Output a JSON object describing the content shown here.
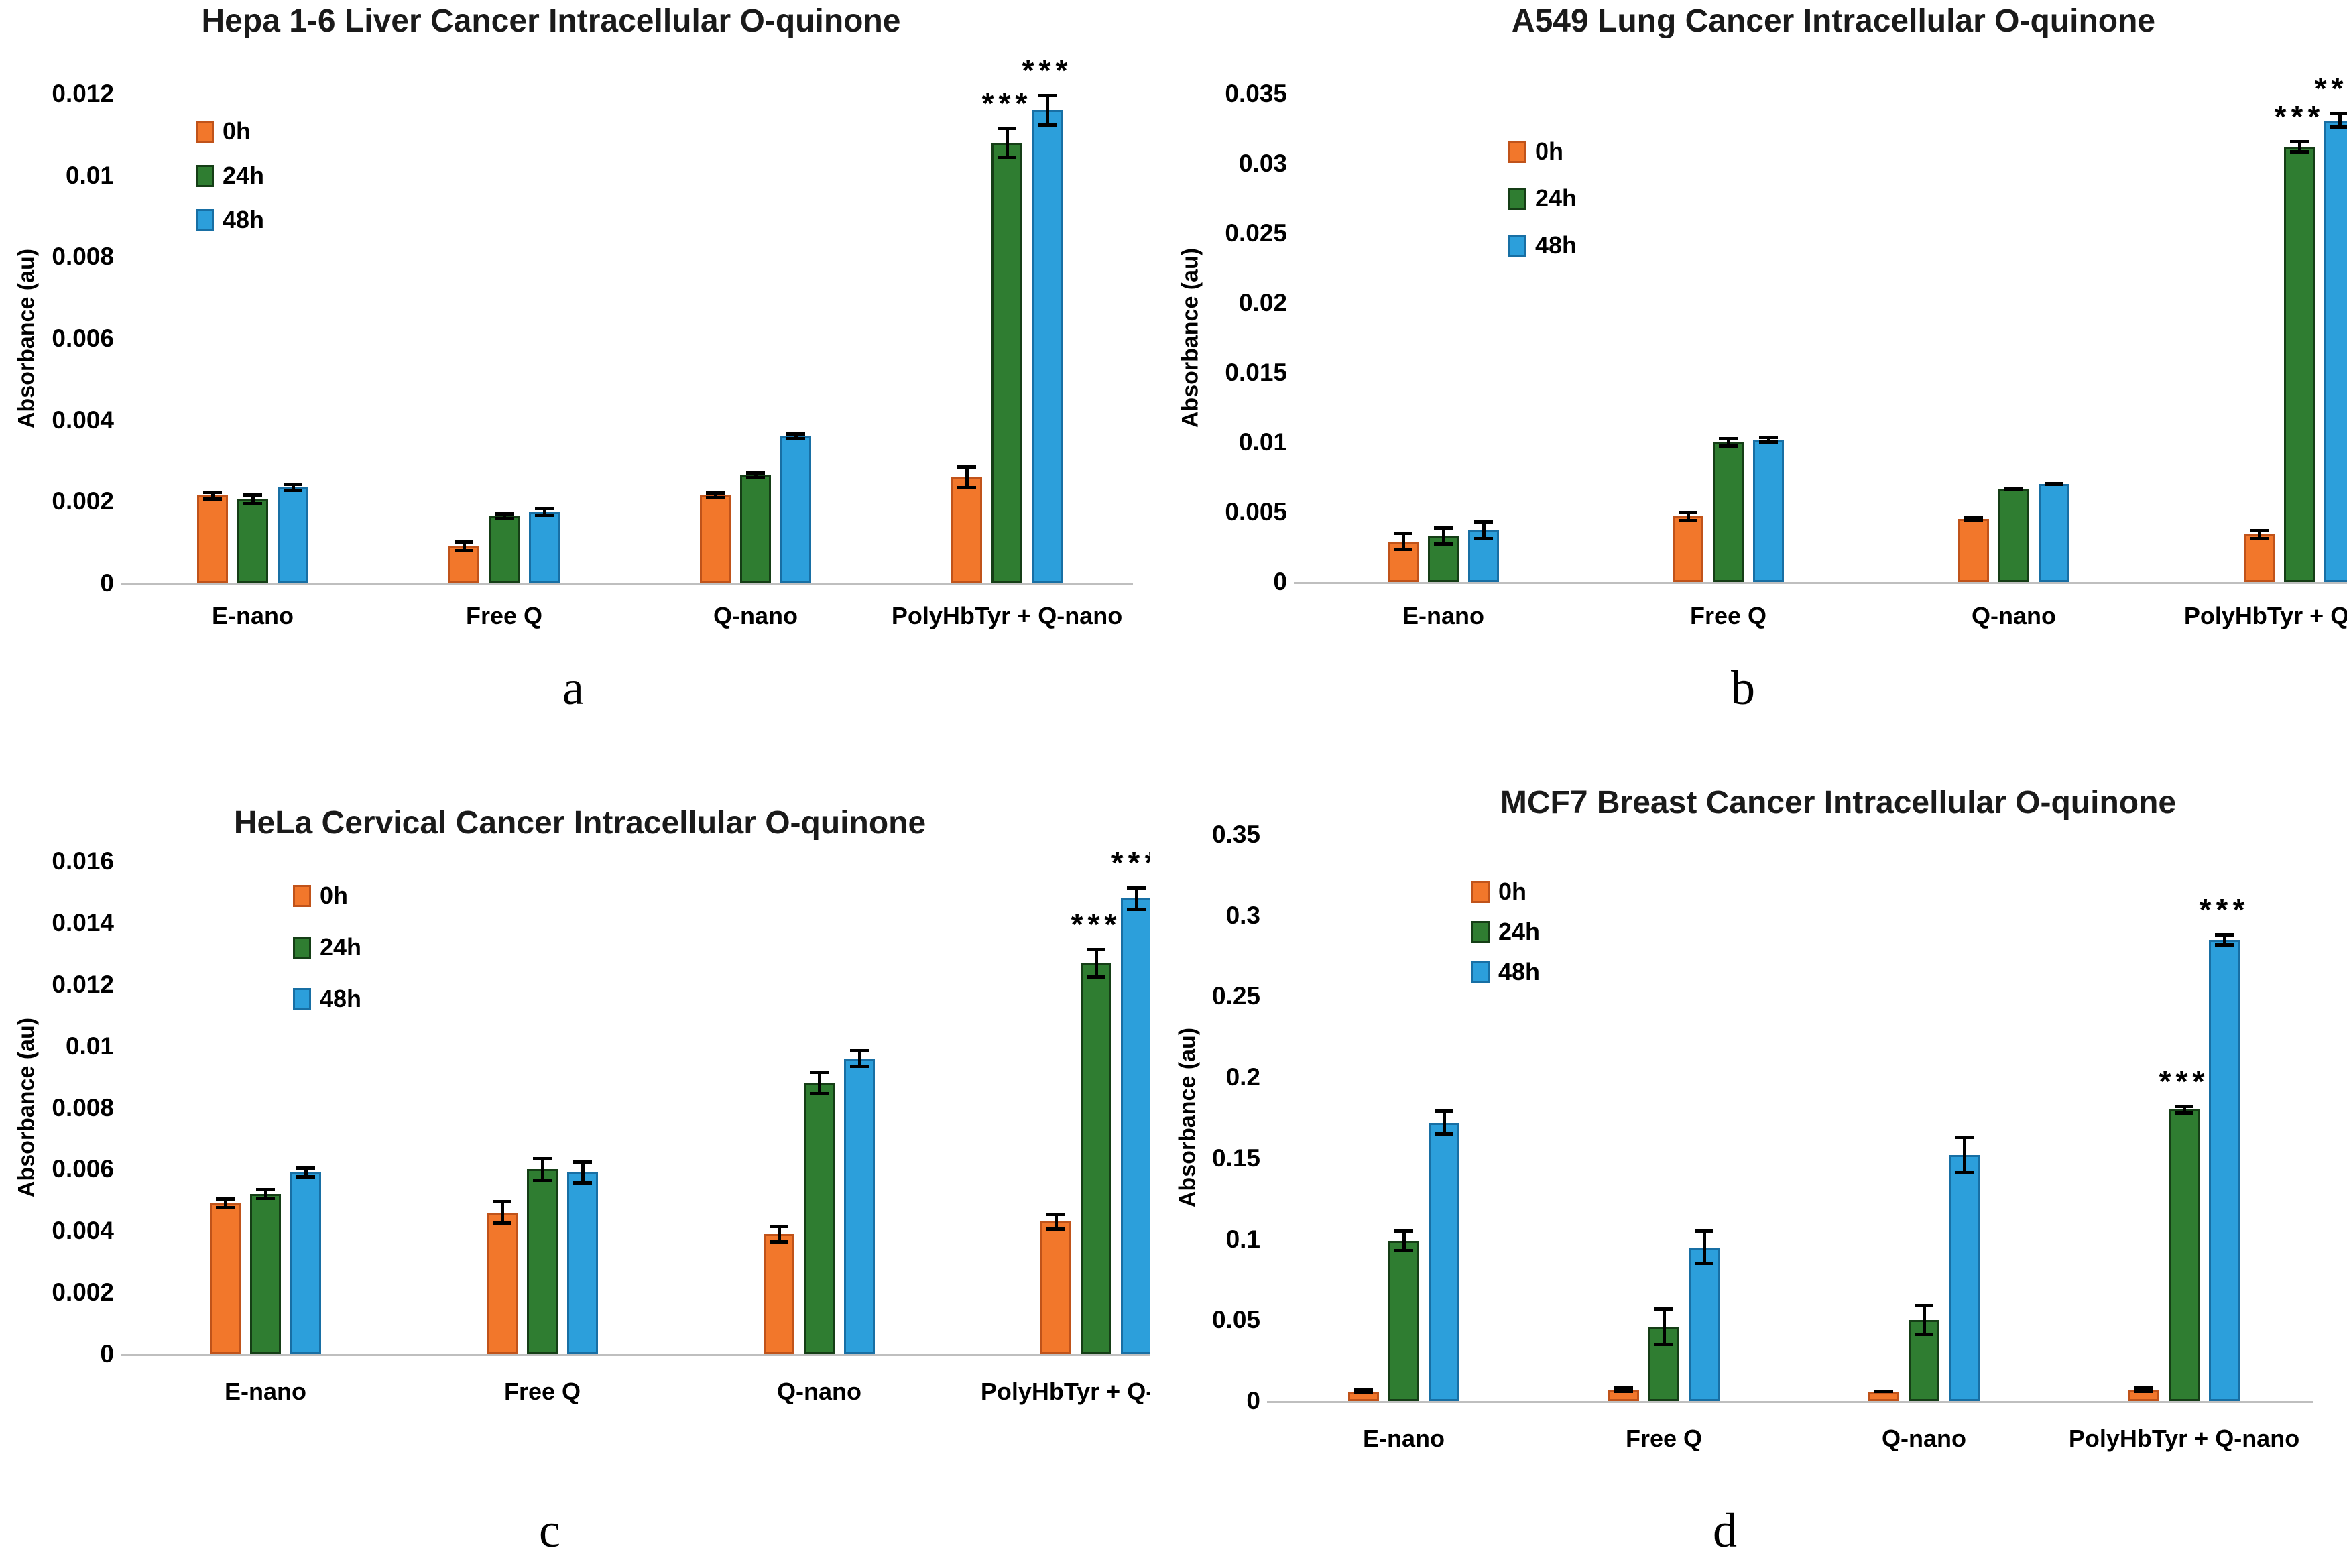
{
  "figure": {
    "description": "Four-panel bar chart figure of intracellular O-quinone absorbance in cancer cell lines"
  },
  "series_colors": {
    "0h": {
      "fill": "#F2772B",
      "border": "#C0531A"
    },
    "24h": {
      "fill": "#2F7D31",
      "border": "#153E16"
    },
    "48h": {
      "fill": "#2C9FDB",
      "border": "#186FA4"
    }
  },
  "axis_color": "#bfbfbf",
  "chart_data": [
    {
      "panel_letter": "a",
      "type": "bar",
      "title": "Hepa 1-6 Liver Cancer Intracellular O-quinone",
      "ylabel": "Absorbance (au)",
      "categories": [
        "E-nano",
        "Free Q",
        "Q-nano",
        "PolyHbTyr + Q-nano"
      ],
      "ylim": [
        0,
        0.012
      ],
      "ytick_labels": [
        "0",
        "0.002",
        "0.004",
        "0.006",
        "0.008",
        "0.01",
        "0.012"
      ],
      "ytick_values": [
        0,
        0.002,
        0.004,
        0.006,
        0.008,
        0.01,
        0.012
      ],
      "grid": false,
      "legend_position": "upper-left",
      "series": [
        {
          "name": "0h",
          "values": [
            0.00215,
            0.0009,
            0.00215,
            0.0026
          ],
          "errors": [
            0.00012,
            0.00015,
            0.0001,
            0.0003
          ]
        },
        {
          "name": "24h",
          "values": [
            0.00205,
            0.00165,
            0.00265,
            0.0108
          ],
          "errors": [
            0.00015,
            0.0001,
            0.0001,
            0.0004
          ]
        },
        {
          "name": "48h",
          "values": [
            0.00235,
            0.00175,
            0.0036,
            0.0116
          ],
          "errors": [
            0.00012,
            0.00012,
            0.0001,
            0.0004
          ]
        }
      ],
      "significance": [
        {
          "category": "PolyHbTyr + Q-nano",
          "series": "24h",
          "label": "***"
        },
        {
          "category": "PolyHbTyr + Q-nano",
          "series": "48h",
          "label": "***"
        }
      ]
    },
    {
      "panel_letter": "b",
      "type": "bar",
      "title": "A549 Lung Cancer Intracellular O-quinone",
      "ylabel": "Absorbance (au)",
      "categories": [
        "E-nano",
        "Free Q",
        "Q-nano",
        "PolyHbTyr + Q-nano"
      ],
      "ylim": [
        0,
        0.035
      ],
      "ytick_labels": [
        "0",
        "0.005",
        "0.01",
        "0.015",
        "0.02",
        "0.025",
        "0.03",
        "0.035"
      ],
      "ytick_values": [
        0,
        0.005,
        0.01,
        0.015,
        0.02,
        0.025,
        0.03,
        0.035
      ],
      "grid": false,
      "legend_position": "upper-left",
      "series": [
        {
          "name": "0h",
          "values": [
            0.0029,
            0.0047,
            0.0045,
            0.0034
          ],
          "errors": [
            0.0007,
            0.0004,
            0.0002,
            0.0004
          ]
        },
        {
          "name": "24h",
          "values": [
            0.0033,
            0.01,
            0.0067,
            0.0312
          ],
          "errors": [
            0.0007,
            0.0004,
            0.0001,
            0.0005
          ]
        },
        {
          "name": "48h",
          "values": [
            0.0037,
            0.0102,
            0.007,
            0.0331
          ],
          "errors": [
            0.0007,
            0.0003,
            0.0001,
            0.0006
          ]
        }
      ],
      "significance": [
        {
          "category": "PolyHbTyr + Q-nano",
          "series": "24h",
          "label": "***"
        },
        {
          "category": "PolyHbTyr + Q-nano",
          "series": "48h",
          "label": "***"
        }
      ]
    },
    {
      "panel_letter": "c",
      "type": "bar",
      "title": "HeLa Cervical Cancer Intracellular O-quinone",
      "ylabel": "Absorbance (au)",
      "categories": [
        "E-nano",
        "Free Q",
        "Q-nano",
        "PolyHbTyr + Q-nano"
      ],
      "ylim": [
        0,
        0.016
      ],
      "ytick_labels": [
        "0",
        "0.002",
        "0.004",
        "0.006",
        "0.008",
        "0.01",
        "0.012",
        "0.014",
        "0.016"
      ],
      "ytick_values": [
        0,
        0.002,
        0.004,
        0.006,
        0.008,
        0.01,
        0.012,
        0.014,
        0.016
      ],
      "grid": false,
      "legend_position": "upper-left",
      "series": [
        {
          "name": "0h",
          "values": [
            0.0049,
            0.0046,
            0.0039,
            0.0043
          ],
          "errors": [
            0.0002,
            0.0004,
            0.0003,
            0.0003
          ]
        },
        {
          "name": "24h",
          "values": [
            0.0052,
            0.006,
            0.0088,
            0.0127
          ],
          "errors": [
            0.0002,
            0.0004,
            0.0004,
            0.0005
          ]
        },
        {
          "name": "48h",
          "values": [
            0.0059,
            0.0059,
            0.0096,
            0.0148
          ],
          "errors": [
            0.0002,
            0.0004,
            0.0003,
            0.0004
          ]
        }
      ],
      "significance": [
        {
          "category": "PolyHbTyr + Q-nano",
          "series": "24h",
          "label": "***"
        },
        {
          "category": "PolyHbTyr + Q-nano",
          "series": "48h",
          "label": "***"
        }
      ]
    },
    {
      "panel_letter": "d",
      "type": "bar",
      "title": "MCF7 Breast Cancer Intracellular O-quinone",
      "ylabel": "Absorbance (au)",
      "categories": [
        "E-nano",
        "Free Q",
        "Q-nano",
        "PolyHbTyr + Q-nano"
      ],
      "ylim": [
        0,
        0.35
      ],
      "ytick_labels": [
        "0",
        "0.05",
        "0.1",
        "0.15",
        "0.2",
        "0.25",
        "0.3",
        "0.35"
      ],
      "ytick_values": [
        0,
        0.05,
        0.1,
        0.15,
        0.2,
        0.25,
        0.3,
        0.35
      ],
      "grid": false,
      "legend_position": "upper-left",
      "series": [
        {
          "name": "0h",
          "values": [
            0.006,
            0.007,
            0.006,
            0.007
          ],
          "errors": [
            0.002,
            0.002,
            0.001,
            0.002
          ]
        },
        {
          "name": "24h",
          "values": [
            0.099,
            0.046,
            0.05,
            0.18
          ],
          "errors": [
            0.007,
            0.012,
            0.01,
            0.003
          ]
        },
        {
          "name": "48h",
          "values": [
            0.172,
            0.095,
            0.152,
            0.285
          ],
          "errors": [
            0.008,
            0.011,
            0.012,
            0.004
          ]
        }
      ],
      "significance": [
        {
          "category": "PolyHbTyr + Q-nano",
          "series": "24h",
          "label": "***"
        },
        {
          "category": "PolyHbTyr + Q-nano",
          "series": "48h",
          "label": "***"
        }
      ]
    }
  ]
}
